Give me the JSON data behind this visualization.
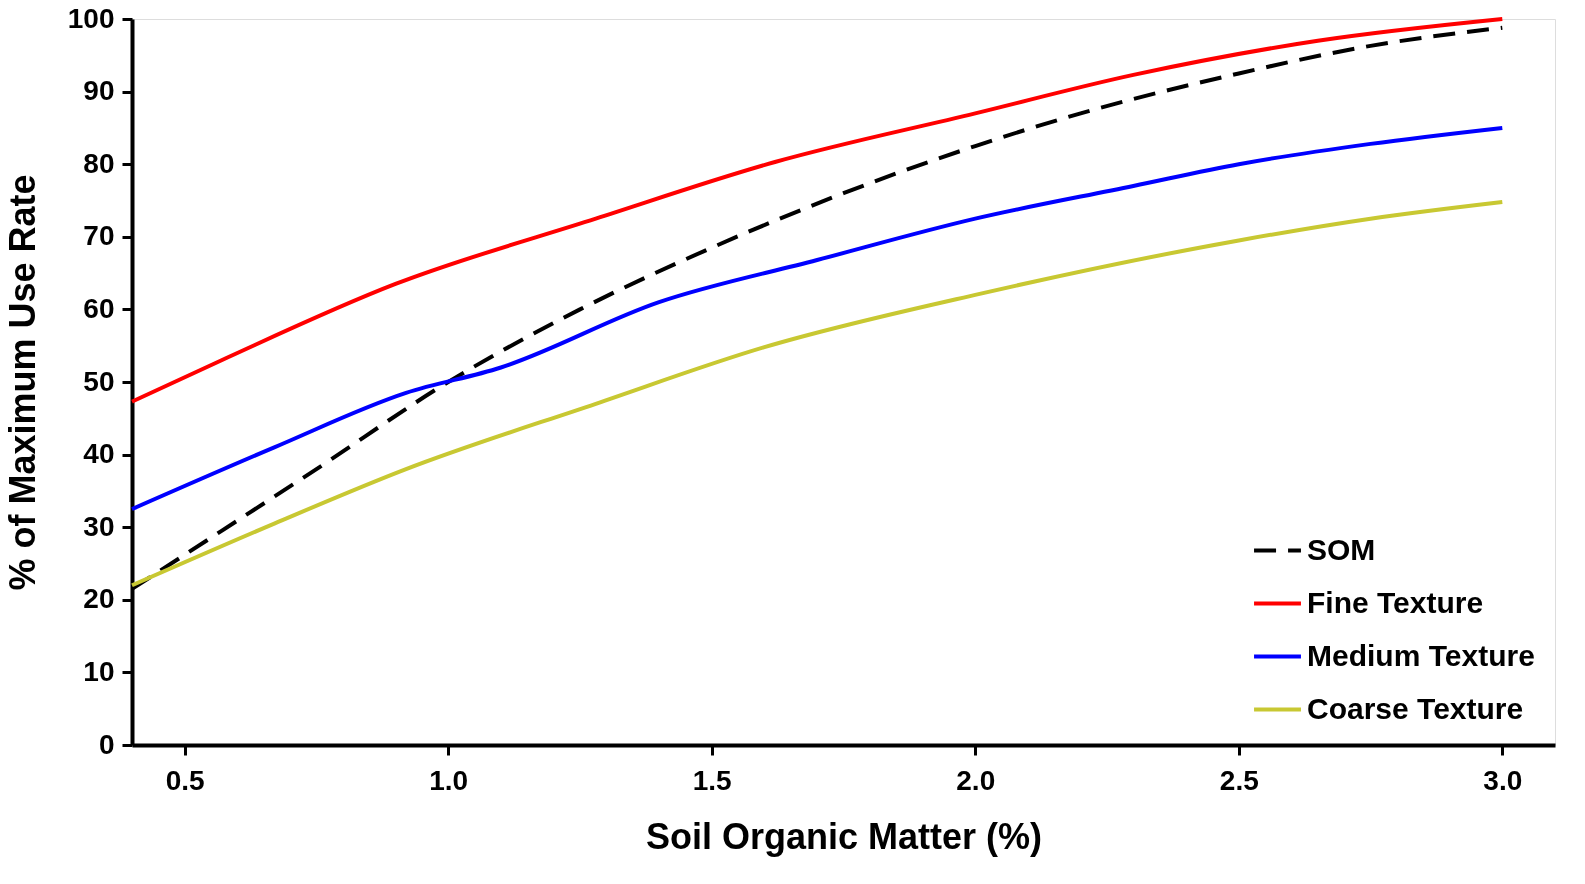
{
  "chart_data": {
    "type": "line",
    "xlabel": "Soil Organic Matter (%)",
    "ylabel": "% of Maximum Use Rate",
    "xlim": [
      0.4,
      3.1
    ],
    "ylim": [
      0,
      100
    ],
    "xticks": [
      0.5,
      {
        "value": 1.0,
        "label": "1.0"
      },
      1.5,
      {
        "value": 2.0,
        "label": "2.0"
      },
      2.5,
      {
        "value": 3.0,
        "label": "3.0"
      }
    ],
    "yticks": [
      0,
      10,
      20,
      30,
      40,
      50,
      60,
      70,
      80,
      90,
      100
    ],
    "grid": false,
    "legend": "bottom right",
    "marker": "none",
    "series": [
      {
        "name": "SOM",
        "color": "#000000",
        "line_style": "dashed",
        "x": [
          0.4,
          0.57,
          0.75,
          1.0,
          1.25,
          1.5,
          1.75,
          2.0,
          2.2,
          2.5,
          2.75,
          3.0
        ],
        "values": [
          21.5,
          29.5,
          38,
          50,
          60,
          68.5,
          76,
          82.5,
          87,
          92.5,
          96.3,
          98.8
        ]
      },
      {
        "name": "Fine Texture",
        "color": "#ff0000",
        "line_style": "solid",
        "x": [
          0.4,
          0.57,
          0.9,
          1.28,
          1.62,
          2.0,
          2.3,
          2.65,
          3.0
        ],
        "values": [
          47.3,
          53,
          63.5,
          72.5,
          80.3,
          87,
          92.3,
          97,
          100
        ]
      },
      {
        "name": "Medium Texture",
        "color": "#0000ff",
        "line_style": "solid",
        "x": [
          0.4,
          0.67,
          0.92,
          1.1,
          1.4,
          1.7,
          2.0,
          2.3,
          2.5,
          2.75,
          3.0
        ],
        "values": [
          32.5,
          41,
          48.5,
          52,
          61,
          66.8,
          72.5,
          77,
          80,
          82.8,
          85
        ]
      },
      {
        "name": "Coarse Texture",
        "color": "#c8c832",
        "line_style": "solid",
        "x": [
          0.4,
          0.67,
          0.92,
          1.28,
          1.6,
          2.0,
          2.5,
          2.75,
          3.0
        ],
        "values": [
          22,
          30.5,
          38,
          47,
          54.8,
          62,
          69.5,
          72.5,
          74.8
        ]
      }
    ]
  }
}
